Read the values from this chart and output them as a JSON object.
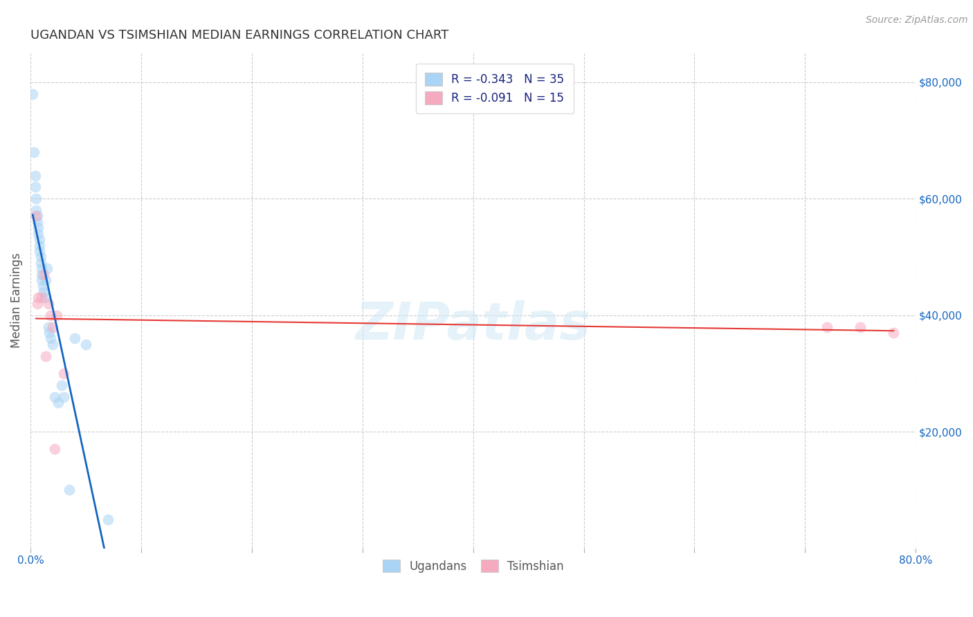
{
  "title": "UGANDAN VS TSIMSHIAN MEDIAN EARNINGS CORRELATION CHART",
  "source": "Source: ZipAtlas.com",
  "ylabel": "Median Earnings",
  "watermark": "ZIPatlas",
  "ugandan_x": [
    0.2,
    0.3,
    0.4,
    0.4,
    0.5,
    0.5,
    0.6,
    0.6,
    0.7,
    0.7,
    0.8,
    0.8,
    0.8,
    0.9,
    0.9,
    1.0,
    1.0,
    1.0,
    1.1,
    1.2,
    1.3,
    1.4,
    1.5,
    1.6,
    1.7,
    1.8,
    2.0,
    2.2,
    2.5,
    2.8,
    3.0,
    3.5,
    4.0,
    5.0,
    7.0
  ],
  "ugandan_y": [
    78000,
    68000,
    64000,
    62000,
    60000,
    58000,
    57000,
    56000,
    55000,
    54000,
    53000,
    52000,
    51000,
    50000,
    49000,
    48000,
    47000,
    46000,
    45000,
    44000,
    43000,
    46000,
    48000,
    38000,
    37000,
    36000,
    35000,
    26000,
    25000,
    28000,
    26000,
    10000,
    36000,
    35000,
    5000
  ],
  "tsimshian_x": [
    0.5,
    0.6,
    0.7,
    1.0,
    1.2,
    1.4,
    1.6,
    1.8,
    2.0,
    2.2,
    2.4,
    3.0,
    72.0,
    75.0,
    78.0
  ],
  "tsimshian_y": [
    57000,
    42000,
    43000,
    43000,
    47000,
    33000,
    42000,
    40000,
    38000,
    17000,
    40000,
    30000,
    38000,
    38000,
    37000
  ],
  "ugandan_color": "#aad4f5",
  "tsimshian_color": "#f5aac0",
  "ugandan_line_color": "#1565c0",
  "tsimshian_line_color": "#e53935",
  "ugandan_R": "-0.343",
  "ugandan_N": "35",
  "tsimshian_R": "-0.091",
  "tsimshian_N": "15",
  "ylim": [
    0,
    85000
  ],
  "xlim": [
    0.0,
    80.0
  ],
  "yticks": [
    0,
    20000,
    40000,
    60000,
    80000
  ],
  "ytick_labels": [
    "",
    "$20,000",
    "$40,000",
    "$60,000",
    "$80,000"
  ],
  "xtick_positions": [
    0,
    10,
    20,
    30,
    40,
    50,
    60,
    70,
    80
  ],
  "xtick_labels": [
    "0.0%",
    "",
    "",
    "",
    "",
    "",
    "",
    "",
    "80.0%"
  ],
  "legend_labels": [
    "Ugandans",
    "Tsimshian"
  ],
  "background_color": "#ffffff",
  "grid_color": "#cccccc",
  "title_color": "#333333",
  "axis_label_color": "#555555",
  "tick_label_color": "#1565c0",
  "marker_size": 120,
  "marker_alpha": 0.55,
  "ugandan_line_solid_end": 15.0,
  "ugandan_line_dash_end": 50.0
}
